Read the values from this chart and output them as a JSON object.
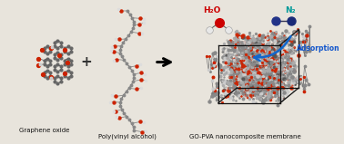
{
  "label_go": "Graphene oxide",
  "label_pva": "Poly(vinyl alcohol)",
  "label_membrane": "GO-PVA nanocomposite membrane",
  "label_h2o": "H₂O",
  "label_n2": "N₂",
  "label_adsorption": "Adsorption",
  "bg_color": "#e8e4dc",
  "color_h2o": "#cc0000",
  "color_n2": "#009999",
  "color_adsorption": "#1155cc",
  "color_arrow_main": "#111111",
  "color_arrow_ads": "#1166cc",
  "text_color_main": "#111111",
  "fig_width": 3.78,
  "fig_height": 1.59,
  "dpi": 100
}
